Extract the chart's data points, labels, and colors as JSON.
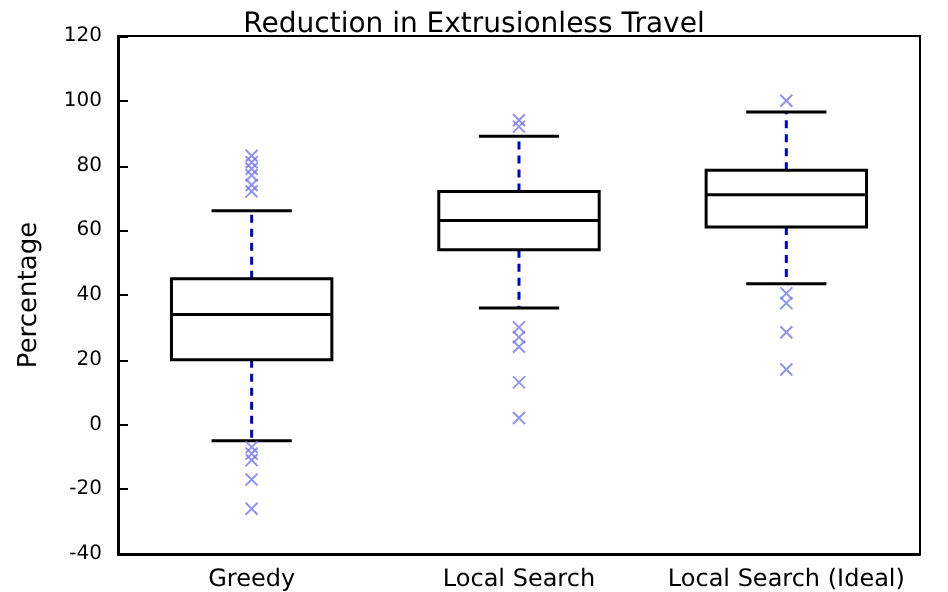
{
  "chart_data": {
    "type": "box",
    "title": "Reduction in Extrusionless Travel",
    "ylabel": "Percentage",
    "categories": [
      "Greedy",
      "Local Search",
      "Local Search (Ideal)"
    ],
    "ylim": [
      -40,
      120
    ],
    "yticks": [
      -40,
      -20,
      0,
      20,
      40,
      60,
      80,
      100,
      120
    ],
    "grid": false,
    "marker": "cross",
    "series": [
      {
        "color": "#000000",
        "boxes": [
          {
            "low": -5,
            "q1": 20,
            "median": 34,
            "q3": 45,
            "high": 66,
            "outliers": [
              83,
              81,
              79,
              77,
              74,
              72,
              -7,
              -9,
              -11,
              -17,
              -26
            ]
          },
          {
            "low": 36,
            "q1": 54,
            "median": 63,
            "q3": 72,
            "high": 89,
            "outliers": [
              94,
              92,
              30,
              27,
              24,
              13,
              2
            ]
          },
          {
            "low": 43.5,
            "q1": 61,
            "median": 71,
            "q3": 78.5,
            "high": 96.5,
            "outliers": [
              100,
              40.5,
              37.5,
              28.5,
              17
            ]
          }
        ]
      }
    ]
  }
}
